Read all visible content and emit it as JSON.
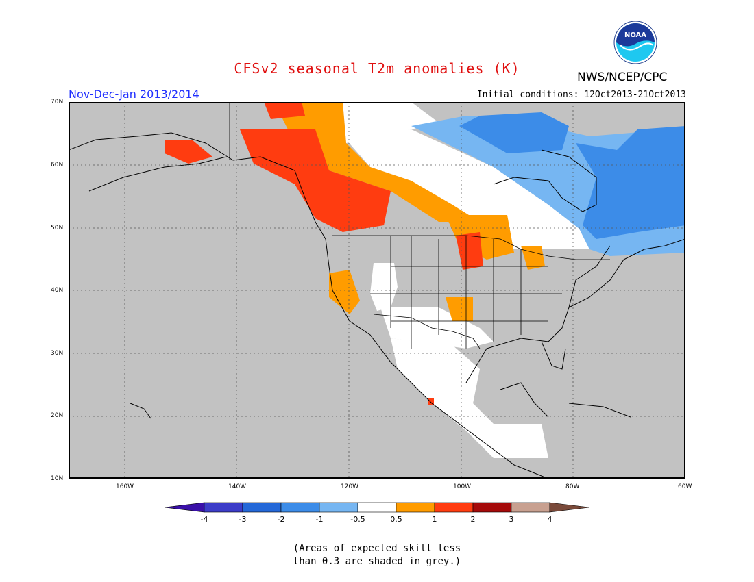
{
  "title": "CFSv2 seasonal T2m anomalies (K)",
  "org": "NWS/NCEP/CPC",
  "logo_text": "NOAA",
  "period": "Nov-Dec-Jan 2013/2014",
  "initial_conditions": "Initial conditions: 12Oct2013-21Oct2013",
  "lat_labels": [
    "70N",
    "60N",
    "50N",
    "40N",
    "30N",
    "20N",
    "10N"
  ],
  "lon_labels": [
    "160W",
    "140W",
    "120W",
    "100W",
    "80W",
    "60W"
  ],
  "colorbar": {
    "colors": [
      "#3a10a8",
      "#3c3cc8",
      "#2468d8",
      "#3c8ce8",
      "#76b6f2",
      "#ffffff",
      "#ff9c00",
      "#ff3c10",
      "#a50a0a",
      "#c8a090",
      "#7a4a3a"
    ],
    "tick_labels": [
      "-4",
      "-3",
      "-2",
      "-1",
      "-0.5",
      "0.5",
      "1",
      "2",
      "3",
      "4"
    ]
  },
  "note_lines": [
    "(Areas of expected skill less",
    "than 0.3 are shaded in grey.)"
  ],
  "colors": {
    "grey": "#c2c2c2",
    "white": "#ffffff",
    "light_blue": "#76b6f2",
    "blue": "#3c8ce8",
    "orange": "#ff9c00",
    "red": "#ff3c10"
  }
}
